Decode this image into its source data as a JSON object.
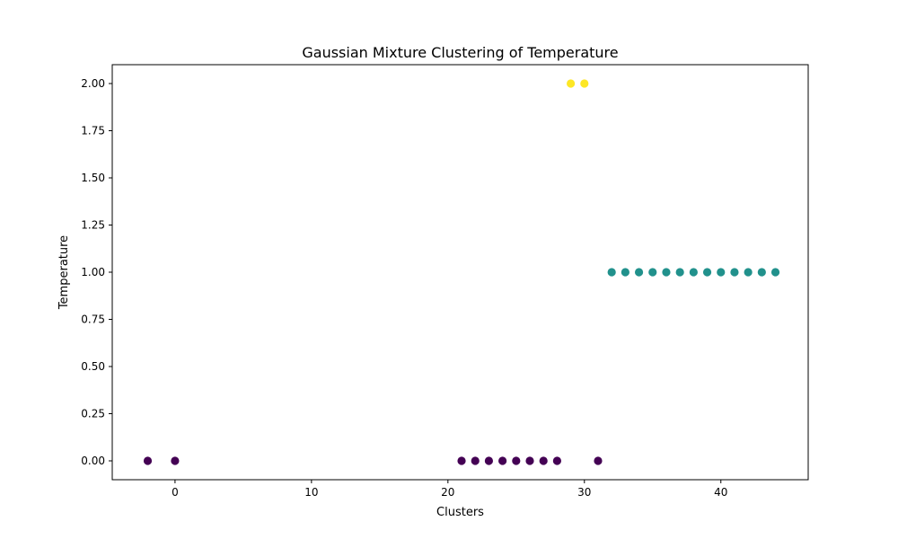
{
  "chart_data": {
    "type": "scatter",
    "title": "Gaussian Mixture Clustering of Temperature",
    "xlabel": "Clusters",
    "ylabel": "Temperature",
    "xlim": [
      -4.6,
      46.4
    ],
    "ylim": [
      -0.1,
      2.1
    ],
    "xticks": [
      0,
      10,
      20,
      30,
      40
    ],
    "yticks": [
      0.0,
      0.25,
      0.5,
      0.75,
      1.0,
      1.25,
      1.5,
      1.75,
      2.0
    ],
    "xtick_labels": [
      "0",
      "10",
      "20",
      "30",
      "40"
    ],
    "ytick_labels": [
      "0.00",
      "0.25",
      "0.50",
      "0.75",
      "1.00",
      "1.25",
      "1.50",
      "1.75",
      "2.00"
    ],
    "grid": false,
    "legend": "none",
    "colormap": "viridis",
    "series": [
      {
        "cluster": 0,
        "color": "#440154",
        "x": [
          -2,
          0,
          21,
          22,
          23,
          24,
          25,
          26,
          27,
          28,
          31
        ],
        "y": [
          0,
          0,
          0,
          0,
          0,
          0,
          0,
          0,
          0,
          0,
          0
        ]
      },
      {
        "cluster": 1,
        "color": "#21918c",
        "x": [
          32,
          33,
          34,
          35,
          36,
          37,
          38,
          39,
          40,
          41,
          42,
          43,
          44
        ],
        "y": [
          1,
          1,
          1,
          1,
          1,
          1,
          1,
          1,
          1,
          1,
          1,
          1,
          1
        ]
      },
      {
        "cluster": 2,
        "color": "#fde725",
        "x": [
          29,
          30
        ],
        "y": [
          2,
          2
        ]
      }
    ]
  }
}
